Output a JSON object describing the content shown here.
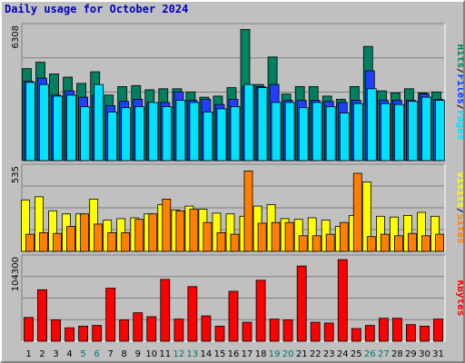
{
  "title": "Daily usage for October 2024",
  "chart_data": [
    {
      "type": "bar",
      "panel": "pages-files-hits",
      "y_max_label": "6308",
      "ylim": [
        0,
        6308
      ],
      "categories": [
        "1",
        "2",
        "3",
        "4",
        "5",
        "6",
        "7",
        "8",
        "9",
        "10",
        "11",
        "12",
        "13",
        "14",
        "15",
        "16",
        "17",
        "18",
        "19",
        "20",
        "21",
        "22",
        "23",
        "24",
        "25",
        "26",
        "27",
        "28",
        "29",
        "30",
        "31"
      ],
      "highlighted_categories": [
        "5",
        "6",
        "12",
        "13",
        "19",
        "20",
        "26",
        "27"
      ],
      "legend": [
        {
          "label": "Hits",
          "color": "#008060"
        },
        {
          "label": "/",
          "color": "#000000"
        },
        {
          "label": "Files",
          "color": "#0040ff"
        },
        {
          "label": "/",
          "color": "#000000"
        },
        {
          "label": "Pages",
          "color": "#00e0ff"
        }
      ],
      "series": [
        {
          "name": "Hits",
          "color": "#008060",
          "values": [
            4350,
            4650,
            4100,
            3950,
            3650,
            4200,
            3100,
            3500,
            3550,
            3350,
            3400,
            3400,
            3250,
            3000,
            3050,
            3450,
            6200,
            3600,
            4900,
            3150,
            3500,
            3500,
            3050,
            2900,
            3500,
            5400,
            3300,
            3200,
            3400,
            3200,
            3250
          ]
        },
        {
          "name": "Files",
          "color": "#2040ff",
          "values": [
            3750,
            3900,
            3100,
            3300,
            3000,
            3100,
            2600,
            2800,
            2900,
            2750,
            2750,
            3250,
            2850,
            2900,
            2650,
            2900,
            3500,
            3500,
            3600,
            2850,
            2850,
            2850,
            2800,
            2750,
            2850,
            4250,
            2850,
            2850,
            2850,
            3150,
            2900
          ]
        },
        {
          "name": "Pages",
          "color": "#00e0ff",
          "values": [
            3700,
            3600,
            3050,
            3100,
            2550,
            3600,
            2300,
            2500,
            2550,
            2750,
            2550,
            2850,
            2750,
            2300,
            2450,
            2550,
            3600,
            3450,
            2750,
            2750,
            2500,
            2750,
            2550,
            2250,
            2700,
            3400,
            2700,
            2650,
            2800,
            3000,
            2850
          ]
        }
      ]
    },
    {
      "type": "bar",
      "panel": "visits-sites",
      "y_max_label": "535",
      "ylim": [
        0,
        535
      ],
      "categories": [
        "1",
        "2",
        "3",
        "4",
        "5",
        "6",
        "7",
        "8",
        "9",
        "10",
        "11",
        "12",
        "13",
        "14",
        "15",
        "16",
        "17",
        "18",
        "19",
        "20",
        "21",
        "22",
        "23",
        "24",
        "25",
        "26",
        "27",
        "28",
        "29",
        "30",
        "31"
      ],
      "legend": [
        {
          "label": "Visits",
          "color": "#ffff00"
        },
        {
          "label": "/",
          "color": "#000000"
        },
        {
          "label": "Sites",
          "color": "#ff8000"
        }
      ],
      "series": [
        {
          "name": "Visits",
          "color": "#ffff00",
          "values": [
            330,
            350,
            260,
            240,
            240,
            335,
            200,
            210,
            215,
            240,
            300,
            265,
            290,
            270,
            245,
            240,
            225,
            290,
            300,
            210,
            205,
            215,
            200,
            160,
            230,
            445,
            225,
            220,
            230,
            250,
            225
          ]
        },
        {
          "name": "Sites",
          "color": "#ff8000",
          "values": [
            110,
            120,
            115,
            160,
            240,
            175,
            120,
            120,
            205,
            240,
            335,
            260,
            270,
            185,
            120,
            110,
            515,
            180,
            185,
            185,
            100,
            100,
            110,
            185,
            500,
            95,
            110,
            100,
            115,
            100,
            110
          ]
        }
      ]
    },
    {
      "type": "bar",
      "panel": "kbytes",
      "y_max_label": "104300",
      "ylim": [
        0,
        104300
      ],
      "categories": [
        "1",
        "2",
        "3",
        "4",
        "5",
        "6",
        "7",
        "8",
        "9",
        "10",
        "11",
        "12",
        "13",
        "14",
        "15",
        "16",
        "17",
        "18",
        "19",
        "20",
        "21",
        "22",
        "23",
        "24",
        "25",
        "26",
        "27",
        "28",
        "29",
        "30",
        "31"
      ],
      "legend": [
        {
          "label": "KBytes",
          "color": "#ff0000"
        }
      ],
      "series": [
        {
          "name": "KBytes",
          "color": "#ff0000",
          "values": [
            30000,
            65000,
            27000,
            17000,
            19000,
            20000,
            67000,
            27000,
            36000,
            31000,
            78000,
            28000,
            69000,
            32000,
            19000,
            63000,
            24000,
            77000,
            28000,
            27000,
            95000,
            24000,
            23000,
            103000,
            16000,
            20000,
            29000,
            29000,
            21000,
            19000,
            28000
          ]
        }
      ]
    }
  ]
}
